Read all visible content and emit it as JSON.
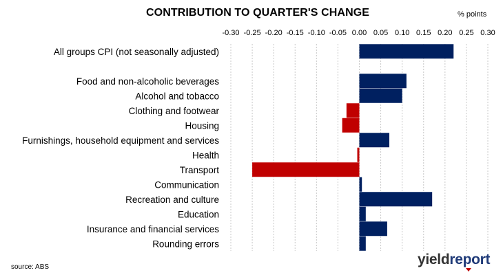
{
  "title": "CONTRIBUTION TO QUARTER'S CHANGE",
  "units_label": "% points",
  "source": "source: ABS",
  "logo": {
    "part1": "yield",
    "part2": "report"
  },
  "colors": {
    "positive": "#002060",
    "negative": "#c00000",
    "grid": "#c8c8c8"
  },
  "chart_data": {
    "type": "bar",
    "orientation": "horizontal",
    "x_ticks": [
      "-0.30",
      "-0.25",
      "-0.20",
      "-0.15",
      "-0.10",
      "-0.05",
      "0.00",
      "0.05",
      "0.10",
      "0.15",
      "0.20",
      "0.25",
      "0.30"
    ],
    "xlim": [
      -0.3,
      0.3
    ],
    "xlabel": "% points",
    "grid": true,
    "categories": [
      "All groups CPI (not seasonally adjusted)",
      "",
      "Food and non-alcoholic beverages",
      "Alcohol and tobacco",
      "Clothing and footwear",
      "Housing",
      "Furnishings, household equipment and services",
      "Health",
      "Transport",
      "Communication",
      "Recreation and culture",
      "Education",
      "Insurance and financial services",
      "Rounding errors"
    ],
    "values": [
      0.22,
      null,
      0.11,
      0.1,
      -0.03,
      -0.04,
      0.07,
      -0.003,
      -0.25,
      0.006,
      0.17,
      0.015,
      0.065,
      0.015
    ]
  }
}
